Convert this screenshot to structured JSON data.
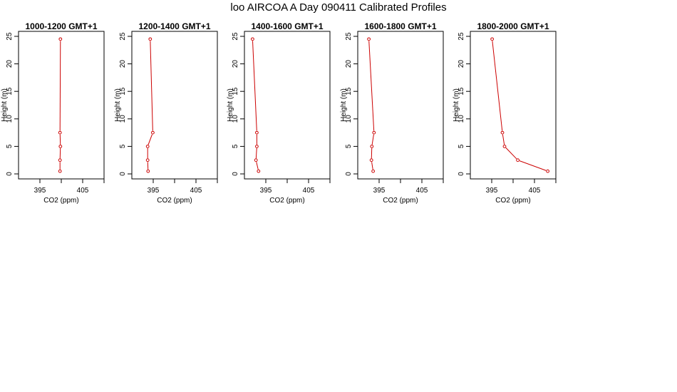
{
  "page": {
    "title": "loo AIRCOA A  Day 090411  Calibrated Profiles"
  },
  "colors": {
    "series": "#cc0000",
    "axis": "#000000"
  },
  "chart_data": [
    {
      "type": "line",
      "title": "1000-1200 GMT+1",
      "xlabel": "CO2 (ppm)",
      "ylabel": "Height (m)",
      "xlim": [
        390,
        410
      ],
      "ylim": [
        0,
        25
      ],
      "xticks": [
        395,
        400,
        405,
        410
      ],
      "xtick_labels": [
        "395",
        "",
        "405",
        ""
      ],
      "yticks": [
        0,
        5,
        10,
        15,
        20,
        25
      ],
      "series": [
        {
          "x": [
            399.7,
            399.7,
            399.8,
            399.7,
            399.8
          ],
          "y": [
            0.5,
            2.5,
            5,
            7.5,
            24.5
          ]
        }
      ]
    },
    {
      "type": "line",
      "title": "1200-1400 GMT+1",
      "xlabel": "CO2 (ppm)",
      "ylabel": "Height (m)",
      "xlim": [
        390,
        410
      ],
      "ylim": [
        0,
        25
      ],
      "xticks": [
        395,
        400,
        405,
        410
      ],
      "xtick_labels": [
        "395",
        "",
        "405",
        ""
      ],
      "yticks": [
        0,
        5,
        10,
        15,
        20,
        25
      ],
      "series": [
        {
          "x": [
            393.8,
            393.7,
            393.7,
            394.9,
            394.3
          ],
          "y": [
            0.5,
            2.5,
            5,
            7.5,
            24.5
          ]
        }
      ]
    },
    {
      "type": "line",
      "title": "1400-1600 GMT+1",
      "xlabel": "CO2 (ppm)",
      "ylabel": "Height (m)",
      "xlim": [
        390,
        410
      ],
      "ylim": [
        0,
        25
      ],
      "xticks": [
        395,
        400,
        405,
        410
      ],
      "xtick_labels": [
        "395",
        "",
        "405",
        ""
      ],
      "yticks": [
        0,
        5,
        10,
        15,
        20,
        25
      ],
      "series": [
        {
          "x": [
            393.3,
            392.7,
            392.9,
            392.9,
            391.9
          ],
          "y": [
            0.5,
            2.5,
            5,
            7.5,
            24.5
          ]
        }
      ]
    },
    {
      "type": "line",
      "title": "1600-1800 GMT+1",
      "xlabel": "CO2 (ppm)",
      "ylabel": "Height (m)",
      "xlim": [
        390,
        410
      ],
      "ylim": [
        0,
        25
      ],
      "xticks": [
        395,
        400,
        405,
        410
      ],
      "xtick_labels": [
        "395",
        "",
        "405",
        ""
      ],
      "yticks": [
        0,
        5,
        10,
        15,
        20,
        25
      ],
      "series": [
        {
          "x": [
            393.6,
            393.2,
            393.3,
            393.8,
            392.6
          ],
          "y": [
            0.5,
            2.5,
            5,
            7.5,
            24.5
          ]
        }
      ]
    },
    {
      "type": "line",
      "title": "1800-2000 GMT+1",
      "xlabel": "CO2 (ppm)",
      "ylabel": "Height (m)",
      "xlim": [
        390,
        410
      ],
      "ylim": [
        0,
        25
      ],
      "xticks": [
        395,
        400,
        405,
        410
      ],
      "xtick_labels": [
        "395",
        "",
        "405",
        ""
      ],
      "yticks": [
        0,
        5,
        10,
        15,
        20,
        25
      ],
      "series": [
        {
          "x": [
            408.1,
            401.1,
            398.0,
            397.5,
            395.1
          ],
          "y": [
            0.5,
            2.5,
            5,
            7.5,
            24.5
          ]
        }
      ]
    }
  ]
}
